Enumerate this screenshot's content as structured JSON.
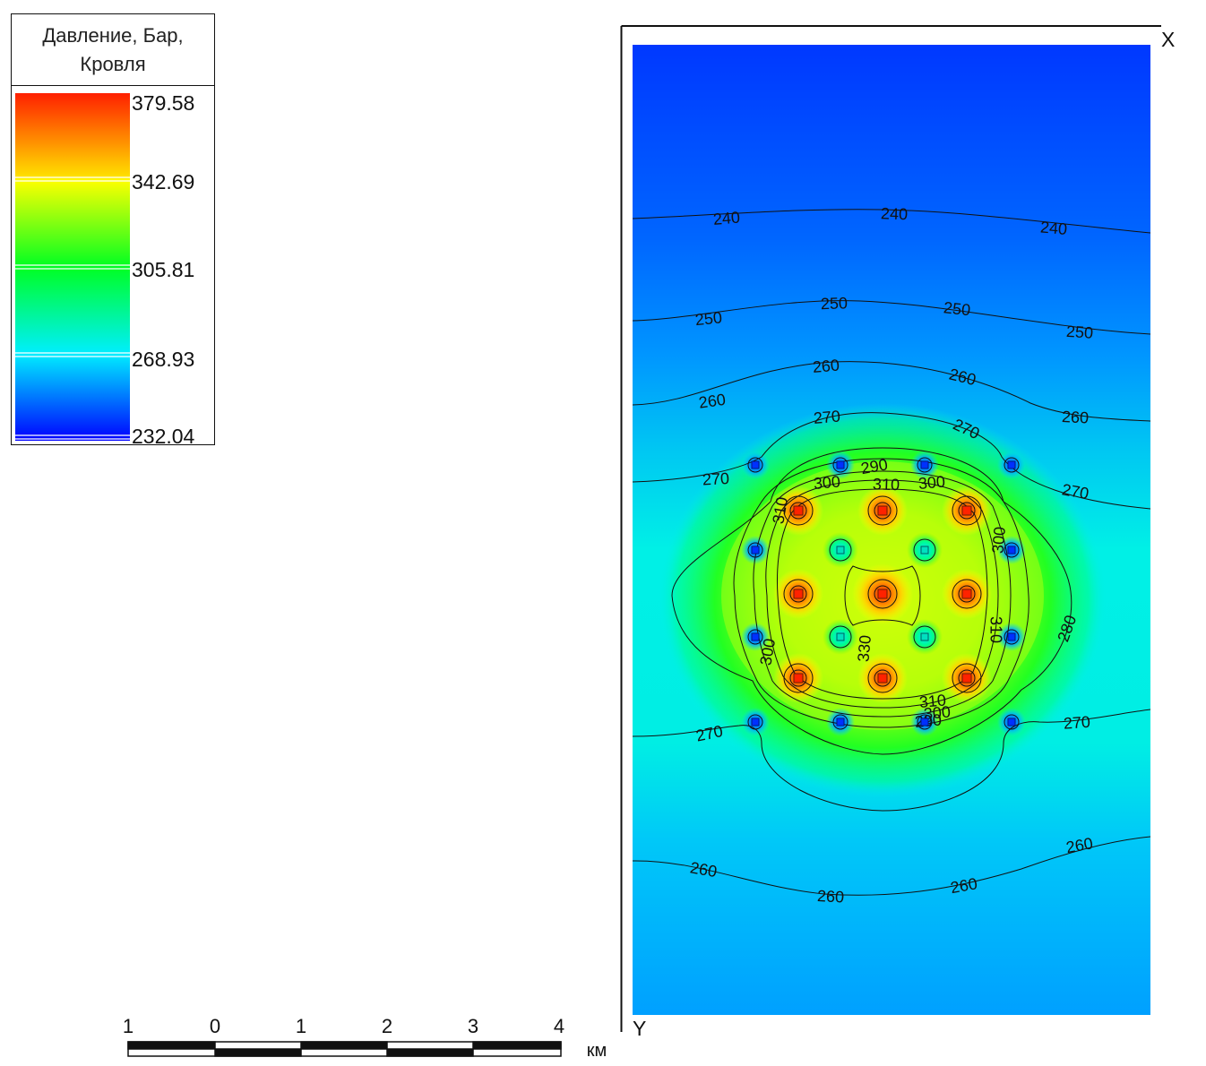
{
  "legend": {
    "title_line1": "Давление, Бар,",
    "title_line2": "Кровля",
    "ticks": [
      "379.58",
      "342.69",
      "305.81",
      "268.93",
      "232.04"
    ],
    "min": 232.04,
    "max": 379.58,
    "colormap": [
      "#0000ff",
      "#00e5ff",
      "#00ff22",
      "#ffff00",
      "#ff2200"
    ]
  },
  "map": {
    "axis_x_label": "X",
    "axis_y_label": "Y",
    "contour_labels": [
      "240",
      "240",
      "240",
      "250",
      "250",
      "250",
      "250",
      "260",
      "260",
      "260",
      "260",
      "270",
      "270",
      "270",
      "270",
      "290",
      "300",
      "310",
      "300",
      "310",
      "300",
      "280",
      "310",
      "330",
      "300",
      "310",
      "300",
      "290",
      "270",
      "270",
      "260",
      "260",
      "260",
      "260"
    ],
    "wells": {
      "injectors": 9,
      "producers": 16
    }
  },
  "scalebar": {
    "labels": [
      "1",
      "0",
      "1",
      "2",
      "3",
      "4"
    ],
    "unit": "км"
  }
}
